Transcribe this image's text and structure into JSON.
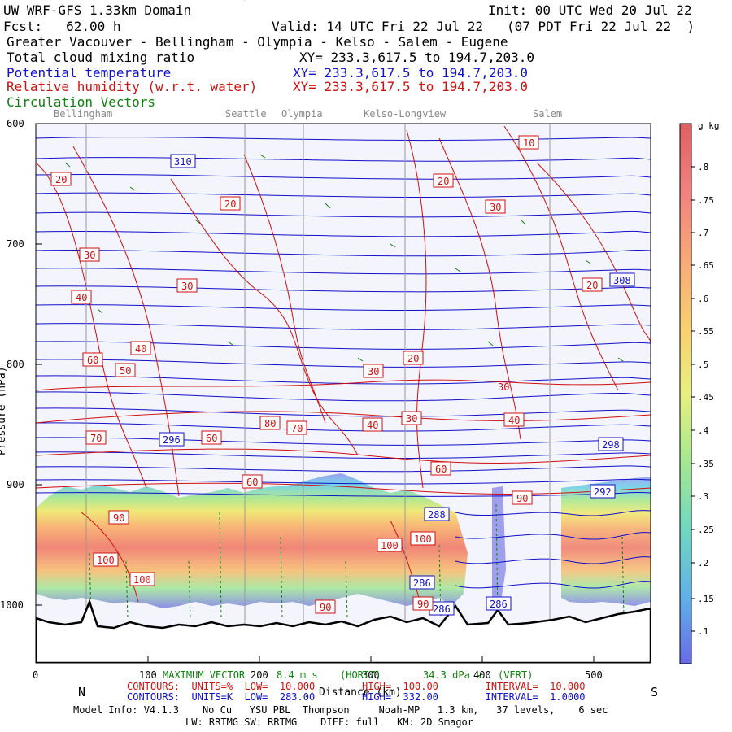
{
  "header": {
    "model": "UW WRF-GFS 1.33km Domain",
    "init": "Init: 00 UTC Wed 20 Jul 22",
    "fcst": "Fcst:   62.00 h",
    "valid": "Valid: 14 UTC Fri 22 Jul 22   (07 PDT Fri 22 Jul 22  )",
    "region": "Greater Vacouver - Bellingham - Olympia - Kelso - Salem - Eugene",
    "field1": "Total cloud mixing ratio",
    "field1_xy": "XY= 233.3,617.5 to 194.7,203.0",
    "field2": "Potential temperature",
    "field2_xy": "XY= 233.3,617.5 to 194.7,203.0",
    "field3": "Relative humidity (w.r.t. water)",
    "field3_xy": "XY= 233.3,617.5 to 194.7,203.0",
    "field4": "Circulation Vectors"
  },
  "places": [
    "Bellingham",
    "Seattle",
    "Olympia",
    "Kelso-Longview",
    "Salem"
  ],
  "colorbar": {
    "unit": "g kg",
    "labels": [
      ".8",
      ".75",
      ".7",
      ".65",
      ".6",
      ".55",
      ".5",
      ".45",
      ".4",
      ".35",
      ".3",
      ".25",
      ".2",
      ".15",
      ".1"
    ]
  },
  "chart_data": {
    "type": "heatmap",
    "title": "Vertical cross-section: Total cloud mixing ratio, Potential temperature, Relative humidity, Circulation Vectors",
    "xlabel": "Distance (km)",
    "ylabel": "Pressure (hPa)",
    "x_ticks": [
      "0",
      "100",
      "200",
      "300",
      "400",
      "500"
    ],
    "y_ticks": [
      "600",
      "700",
      "800",
      "900",
      "1000"
    ],
    "xlim": [
      0,
      550
    ],
    "ylim": [
      1050,
      600
    ],
    "x_end_labels": [
      "N",
      "S"
    ],
    "theta_labels": [
      "310",
      "308",
      "298",
      "296",
      "292",
      "288",
      "286",
      "286",
      "286"
    ],
    "rh_labels": [
      "10",
      "20",
      "20",
      "20",
      "20",
      "20",
      "20",
      "30",
      "30",
      "30",
      "30",
      "40",
      "40",
      "40",
      "50",
      "60",
      "60",
      "60",
      "60",
      "70",
      "70",
      "80",
      "80",
      "90",
      "90",
      "90",
      "90",
      "100",
      "100",
      "100",
      "100",
      "30",
      "40",
      "30"
    ],
    "place_x_km": {
      "Bellingham": 45,
      "Seattle": 188,
      "Olympia": 240,
      "Kelso-Longview": 331,
      "Salem": 459
    }
  },
  "footer": {
    "vectors_label": "MAXIMUM VECTOR",
    "vectors_horiz": "8.4 m s",
    "vectors_horiz_unit": "(HORIZ)",
    "vectors_vert": "34.3 dPa s",
    "vectors_vert_unit": "(VERT)",
    "contours_rh": "CONTOURS:  UNITS=%  LOW=  10.000        HIGH=  100.00        INTERVAL=  10.000",
    "contours_theta": "CONTOURS:  UNITS=K  LOW=  283.00        HIGH=  332.00        INTERVAL=  1.0000",
    "distance": "Distance (km)",
    "model_info": "Model Info: V4.1.3    No Cu   YSU PBL  Thompson     Noah-MP   1.3 km,   37 levels,    6 sec",
    "model_info2": "LW: RRTMG SW: RRTMG    DIFF: full   KM: 2D Smagor"
  }
}
